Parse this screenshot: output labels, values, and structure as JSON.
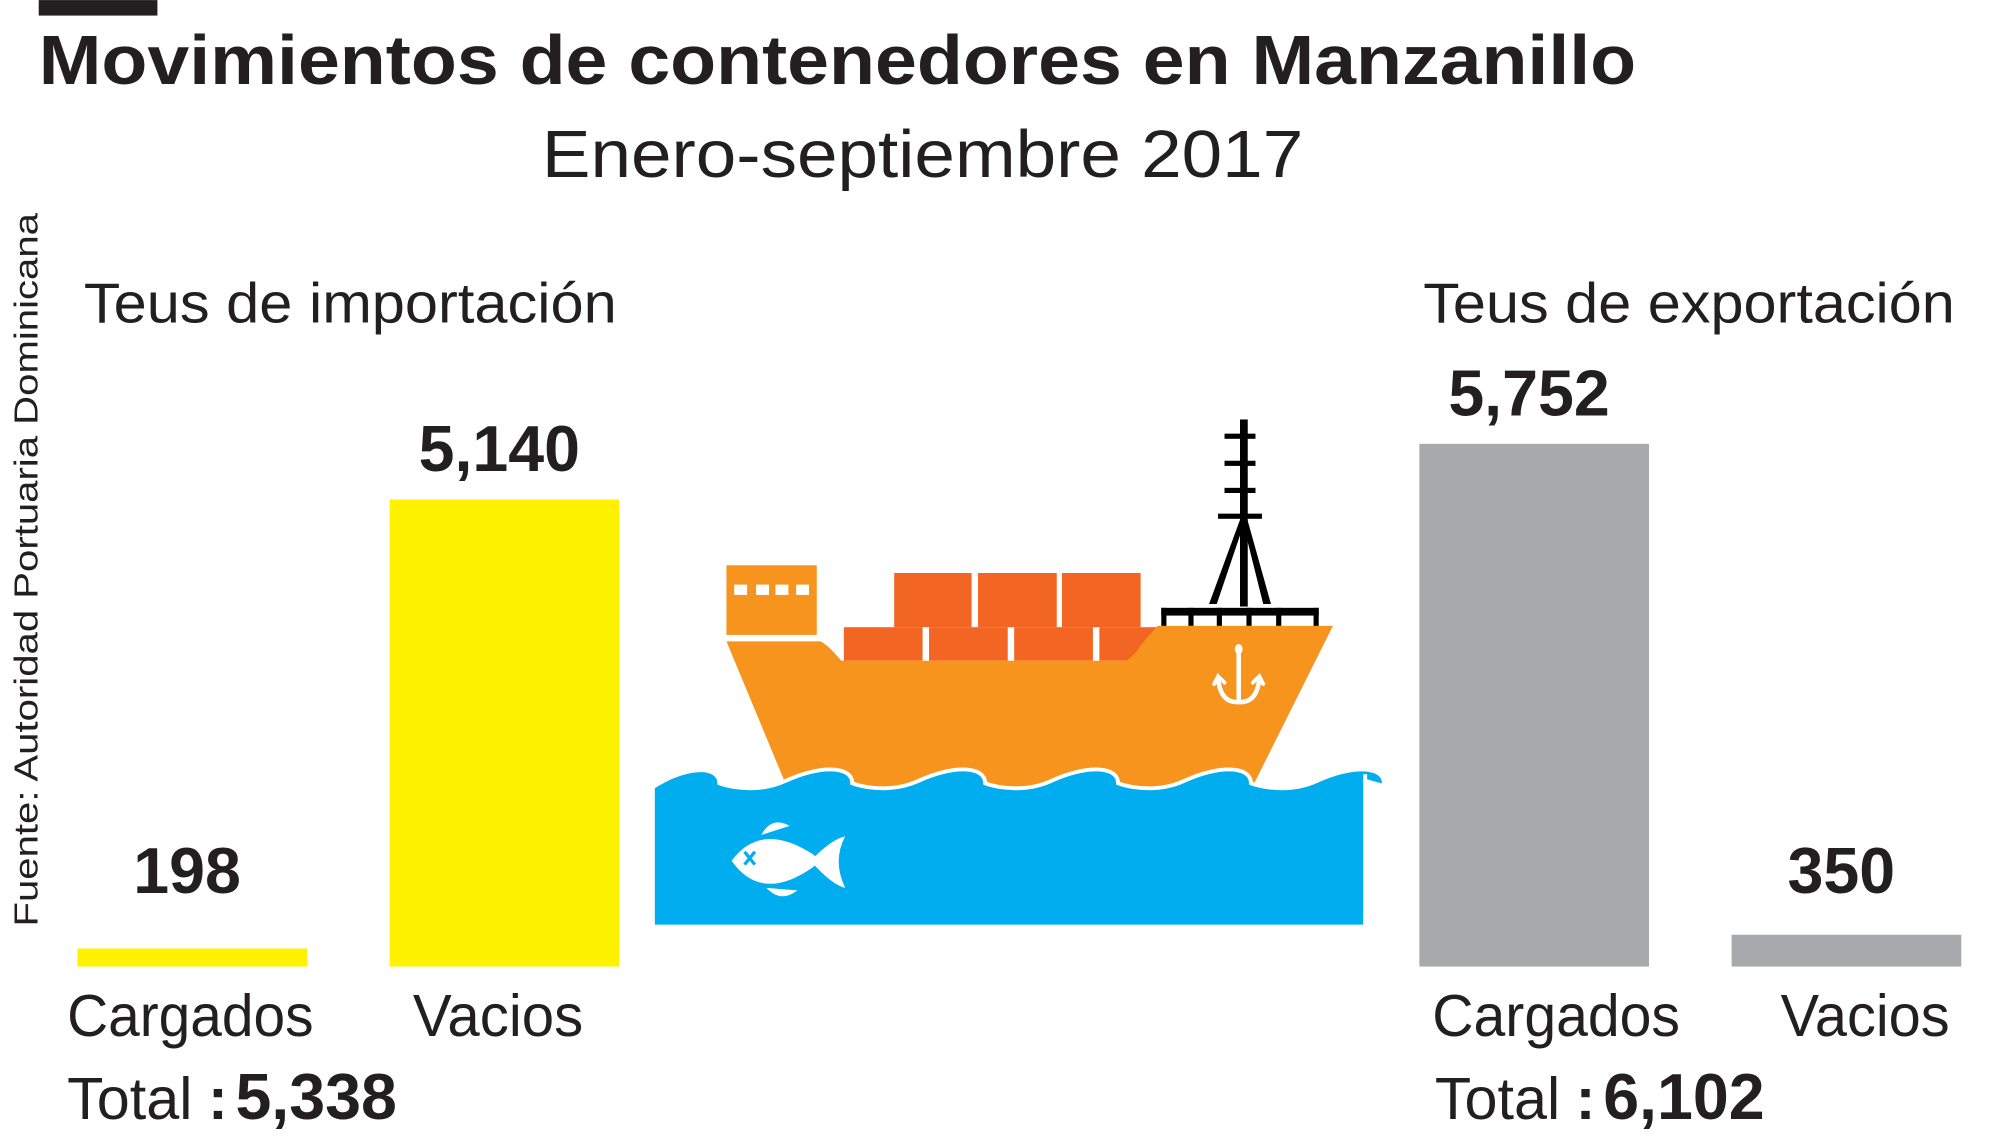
{
  "title": "Movimientos de contenedores en Manzanillo",
  "subtitle": "Enero-septiembre 2017",
  "source": "Fuente: Autoridad Portuaria Dominicana",
  "chart_data": [
    {
      "type": "bar",
      "title": "Teus de importación",
      "categories": [
        "Cargados",
        "Vacios"
      ],
      "values": [
        198,
        5140
      ],
      "value_labels": [
        "198",
        "5,140"
      ],
      "color": "#FFF200",
      "total_label": "Total",
      "total_sep": ":",
      "total": "5,338"
    },
    {
      "type": "bar",
      "title": "Teus de exportación",
      "categories": [
        "Cargados",
        "Vacios"
      ],
      "values": [
        5752,
        350
      ],
      "value_labels": [
        "5,752",
        "350"
      ],
      "color": "#A7A9AC",
      "total_label": "Total",
      "total_sep": ":",
      "total": "6,102"
    }
  ],
  "colors": {
    "hull": "#F7941D",
    "containers": "#F26522",
    "water": "#00AEEF",
    "text": "#231F20"
  },
  "icons": [
    "container-ship-illustration",
    "anchor-icon",
    "fish-icon"
  ]
}
